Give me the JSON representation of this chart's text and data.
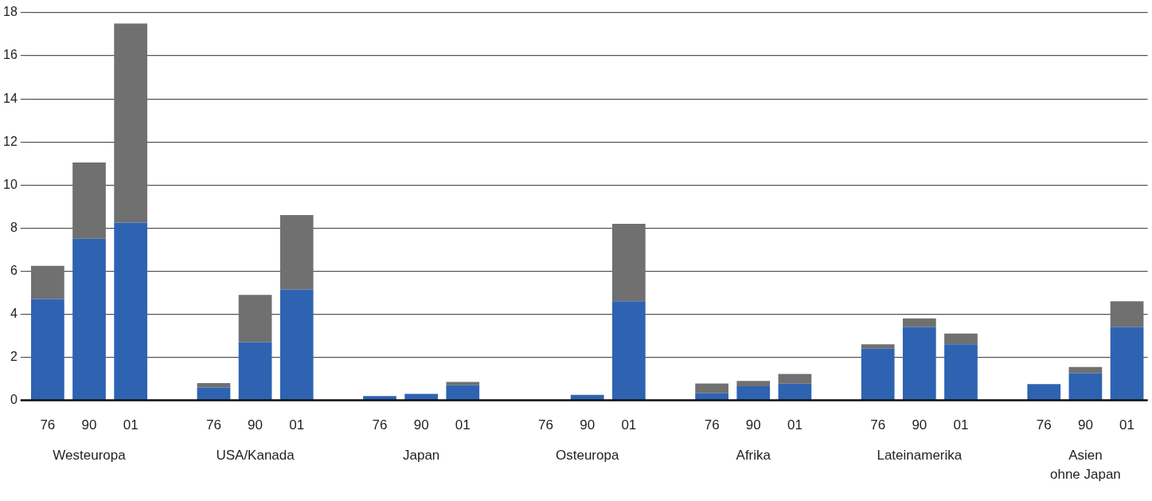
{
  "chart_data": {
    "type": "bar",
    "stacked": true,
    "categories": [
      "76",
      "90",
      "01",
      null,
      "76",
      "90",
      "01",
      null,
      "76",
      "90",
      "01",
      null,
      "76",
      "90",
      "01",
      null,
      "76",
      "90",
      "01",
      null,
      "76",
      "90",
      "01",
      null,
      "76",
      "90",
      "01"
    ],
    "series": [
      {
        "color": "#2e63b2",
        "values": [
          4.7,
          7.5,
          8.25,
          null,
          0.6,
          2.7,
          5.15,
          null,
          0.2,
          0.3,
          0.7,
          null,
          0,
          0.25,
          4.6,
          null,
          0.33,
          0.65,
          0.77,
          null,
          2.4,
          3.4,
          2.6,
          null,
          0.75,
          1.25,
          3.4
        ]
      },
      {
        "color": "#707070",
        "values": [
          1.55,
          3.55,
          9.25,
          null,
          0.2,
          2.2,
          3.45,
          null,
          0,
          0,
          0.15,
          null,
          0,
          0,
          3.6,
          null,
          0.45,
          0.25,
          0.45,
          null,
          0.2,
          0.4,
          0.5,
          null,
          0,
          0.3,
          1.2
        ]
      }
    ],
    "ylim": [
      0,
      18
    ],
    "yticks": [
      0,
      2,
      4,
      6,
      8,
      10,
      12,
      14,
      16,
      18
    ],
    "grid": "y",
    "legend": false,
    "annotations": [
      "Westeuropa",
      "USA/Kanada",
      "Japan",
      "Osteuropa",
      "Afrika",
      "Lateinamerika",
      "Asien\nohne Japan"
    ]
  }
}
